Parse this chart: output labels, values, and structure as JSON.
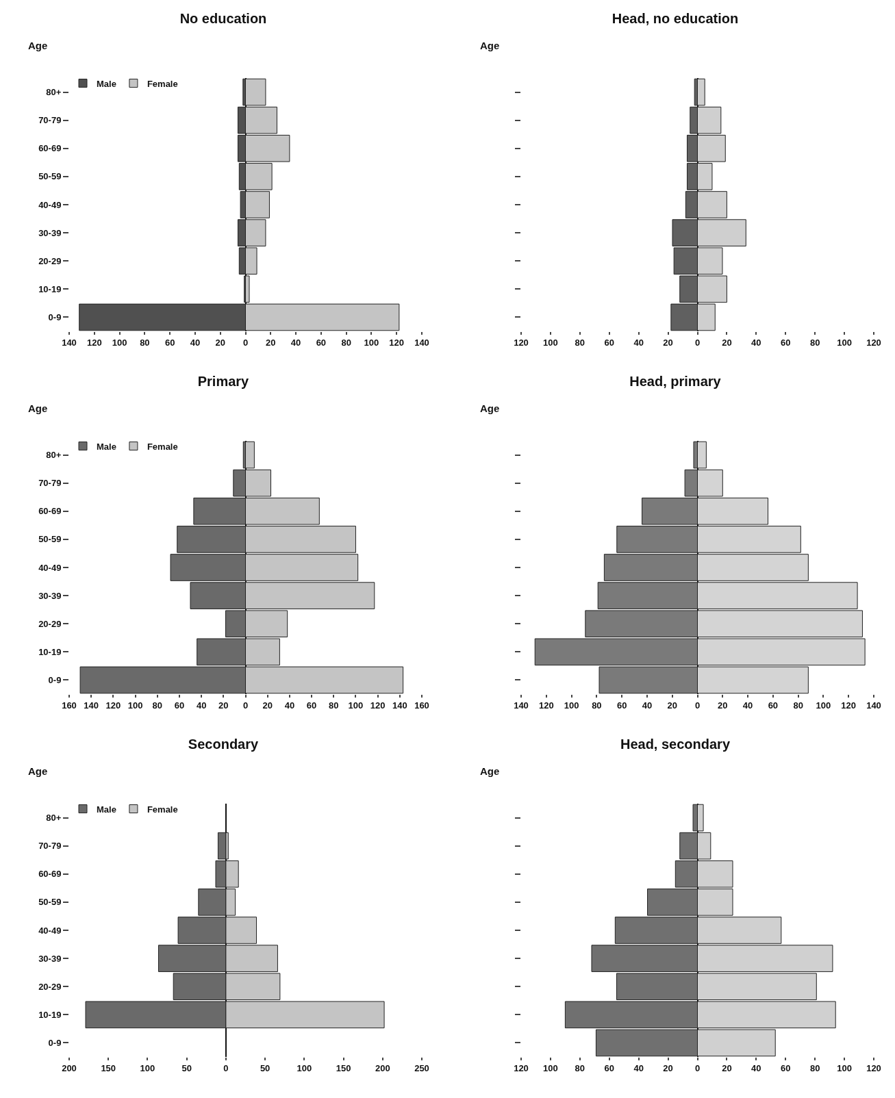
{
  "chart_data": [
    {
      "type": "bar",
      "title": "No education",
      "ylabel": "Age",
      "orientation": "horizontal",
      "stacked": true,
      "legend": "top left",
      "categories": [
        "80+",
        "70-79",
        "60-69",
        "50-59",
        "40-49",
        "30-39",
        "20-29",
        "10-19",
        "0-9"
      ],
      "series": [
        {
          "name": "Male",
          "color": "#505050",
          "values": [
            -2,
            -6,
            -6,
            -5,
            -4,
            -6,
            -5,
            -1,
            -132
          ]
        },
        {
          "name": "Female",
          "color": "#c4c4c4",
          "values": [
            16,
            25,
            35,
            21,
            19,
            16,
            9,
            3,
            122
          ]
        }
      ],
      "xlim": [
        -140,
        140
      ],
      "xticks": [
        {
          "value": -140,
          "label": "140"
        },
        {
          "value": -120,
          "label": "120"
        },
        {
          "value": -100,
          "label": "100"
        },
        {
          "value": -80,
          "label": "80"
        },
        {
          "value": -60,
          "label": "60"
        },
        {
          "value": -40,
          "label": "40"
        },
        {
          "value": -20,
          "label": "20"
        },
        0,
        20,
        40,
        60,
        80,
        100,
        120,
        140
      ]
    },
    {
      "type": "bar",
      "title": "Head, no education",
      "ylabel": "Age",
      "orientation": "horizontal",
      "stacked": true,
      "tick_labels": "x",
      "categories": [
        null,
        null,
        null,
        null,
        null,
        null,
        null,
        null,
        null
      ],
      "series": [
        {
          "color": "#606060",
          "values": [
            -2,
            -5,
            -7,
            -7,
            -8,
            -17,
            -16,
            -12,
            -18
          ]
        },
        {
          "color": "#cfcfcf",
          "values": [
            5,
            16,
            19,
            10,
            20,
            33,
            17,
            20,
            12
          ]
        }
      ],
      "xlim": [
        -120,
        120
      ],
      "xticks": [
        {
          "value": -120,
          "label": "120"
        },
        {
          "value": -100,
          "label": "100"
        },
        {
          "value": -80,
          "label": "80"
        },
        {
          "value": -60,
          "label": "60"
        },
        {
          "value": -40,
          "label": "40"
        },
        {
          "value": -20,
          "label": "20"
        },
        0,
        20,
        40,
        60,
        80,
        100,
        120
      ]
    },
    {
      "type": "bar",
      "title": "Primary",
      "ylabel": "Age",
      "orientation": "horizontal",
      "stacked": true,
      "legend": "top left",
      "categories": [
        "80+",
        "70-79",
        "60-69",
        "50-59",
        "40-49",
        "30-39",
        "20-29",
        "10-19",
        "0-9"
      ],
      "series": [
        {
          "name": "Male",
          "color": "#6a6a6a",
          "values": [
            -2,
            -11,
            -47,
            -62,
            -68,
            -50,
            -18,
            -44,
            -150
          ]
        },
        {
          "name": "Female",
          "color": "#c4c4c4",
          "values": [
            8,
            23,
            67,
            100,
            102,
            117,
            38,
            31,
            143
          ]
        }
      ],
      "xlim": [
        -160,
        160
      ],
      "xticks": [
        {
          "value": -160,
          "label": "160"
        },
        {
          "value": -140,
          "label": "140"
        },
        {
          "value": -120,
          "label": "120"
        },
        {
          "value": -100,
          "label": "100"
        },
        {
          "value": -80,
          "label": "80"
        },
        {
          "value": -60,
          "label": "60"
        },
        {
          "value": -40,
          "label": "40"
        },
        {
          "value": -20,
          "label": "20"
        },
        0,
        20,
        40,
        60,
        80,
        100,
        120,
        140,
        160
      ]
    },
    {
      "type": "bar",
      "title": "Head, primary",
      "ylabel": "Age",
      "orientation": "horizontal",
      "stacked": true,
      "tick_labels": "x",
      "categories": [
        null,
        null,
        null,
        null,
        null,
        null,
        null,
        null,
        null
      ],
      "series": [
        {
          "color": "#7a7a7a",
          "values": [
            -3,
            -10,
            -44,
            -64,
            -74,
            -79,
            -89,
            -129,
            -78
          ]
        },
        {
          "color": "#d4d4d4",
          "values": [
            7,
            20,
            56,
            82,
            88,
            127,
            131,
            133,
            88
          ]
        }
      ],
      "xlim": [
        -140,
        140
      ],
      "xticks": [
        {
          "value": -140,
          "label": "140"
        },
        {
          "value": -120,
          "label": "120"
        },
        {
          "value": -100,
          "label": "100"
        },
        {
          "value": -80,
          "label": "80"
        },
        {
          "value": -60,
          "label": "60"
        },
        {
          "value": -40,
          "label": "40"
        },
        {
          "value": -20,
          "label": "20"
        },
        0,
        20,
        40,
        60,
        80,
        100,
        120,
        140
      ]
    },
    {
      "type": "bar",
      "title": "Secondary",
      "ylabel": "Age",
      "orientation": "horizontal",
      "stacked": true,
      "legend": "top left",
      "categories": [
        "80+",
        "70-79",
        "60-69",
        "50-59",
        "40-49",
        "30-39",
        "20-29",
        "10-19",
        "0-9"
      ],
      "series": [
        {
          "name": "Male",
          "color": "#6a6a6a",
          "values": [
            null,
            -10,
            -13,
            -35,
            -61,
            -86,
            -67,
            -179,
            null
          ]
        },
        {
          "name": "Female",
          "color": "#c4c4c4",
          "values": [
            null,
            3,
            16,
            12,
            39,
            66,
            69,
            202,
            null
          ]
        }
      ],
      "xlim": [
        -200,
        250
      ],
      "xticks": [
        {
          "value": -200,
          "label": "200"
        },
        {
          "value": -150,
          "label": "150"
        },
        {
          "value": -100,
          "label": "100"
        },
        {
          "value": -50,
          "label": "50"
        },
        0,
        50,
        100,
        150,
        200,
        250
      ]
    },
    {
      "type": "bar",
      "title": "Head, secondary",
      "ylabel": "Age",
      "orientation": "horizontal",
      "stacked": true,
      "tick_labels": "x",
      "categories": [
        null,
        null,
        null,
        null,
        null,
        null,
        null,
        null,
        null
      ],
      "series": [
        {
          "color": "#707070",
          "values": [
            -3,
            -12,
            -15,
            -34,
            -56,
            -72,
            -55,
            -90,
            -69
          ]
        },
        {
          "color": "#d0d0d0",
          "values": [
            4,
            9,
            24,
            24,
            57,
            92,
            81,
            94,
            53
          ]
        }
      ],
      "xlim": [
        -120,
        120
      ],
      "xticks": [
        {
          "value": -120,
          "label": "120"
        },
        {
          "value": -100,
          "label": "100"
        },
        {
          "value": -80,
          "label": "80"
        },
        {
          "value": -60,
          "label": "60"
        },
        {
          "value": -40,
          "label": "40"
        },
        {
          "value": -20,
          "label": "20"
        },
        0,
        20,
        40,
        60,
        80,
        100,
        120
      ]
    }
  ]
}
